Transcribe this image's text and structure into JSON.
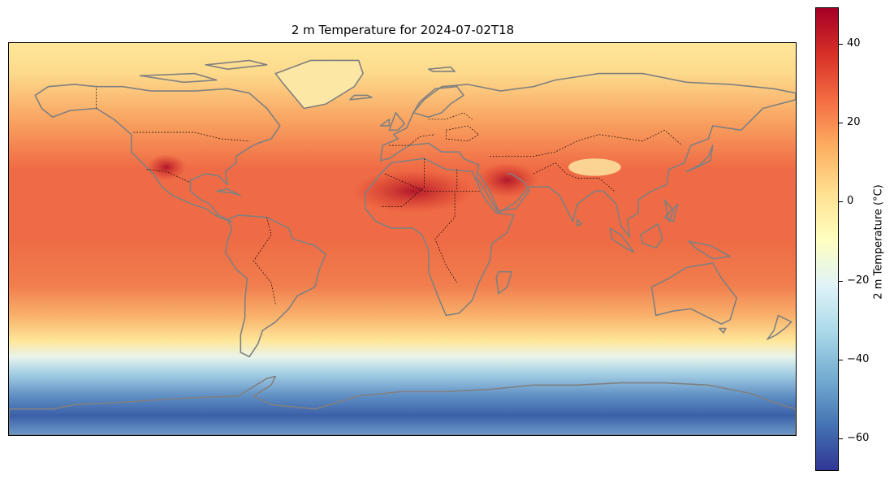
{
  "map": {
    "title": "2 m Temperature for 2024-07-02T18",
    "variable": "2 m Temperature",
    "valid_time": "2024-07-02T18",
    "projection": "equirectangular (Plate Carrée)",
    "extent_lon": [
      -180,
      180
    ],
    "extent_lat": [
      -90,
      90
    ],
    "coastline_color": "#808080",
    "border_style": "dotted"
  },
  "colorbar": {
    "label": "2 m Temperature (°C)",
    "colormap": "RdYlBu_r",
    "vmin": -68,
    "vmax": 49,
    "ticks": [
      {
        "value": 40,
        "label": "40"
      },
      {
        "value": 20,
        "label": "20"
      },
      {
        "value": 0,
        "label": "0"
      },
      {
        "value": -20,
        "label": "−20"
      },
      {
        "value": -40,
        "label": "−40"
      },
      {
        "value": -60,
        "label": "−60"
      }
    ],
    "colors": [
      "#313695",
      "#4575b4",
      "#74add1",
      "#abd9e9",
      "#e0f3f8",
      "#ffffbf",
      "#fee090",
      "#fdae61",
      "#f46d43",
      "#d73027",
      "#a50026"
    ]
  }
}
